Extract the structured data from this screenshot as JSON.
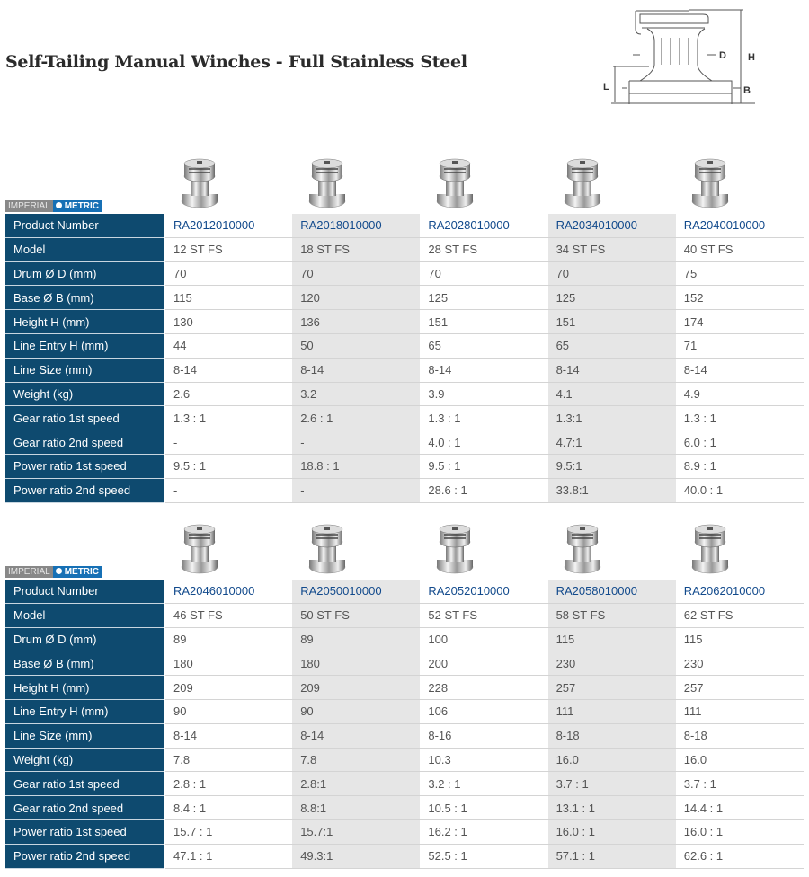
{
  "title": "Self-Tailing Manual Winches - Full Stainless Steel",
  "diagram_labels": {
    "d": "D",
    "h": "H",
    "l": "L",
    "b": "B"
  },
  "unit_toggle": {
    "imperial": "IMPERIAL",
    "metric": "METRIC",
    "selected": "METRIC"
  },
  "row_labels": [
    "Product Number",
    "Model",
    "Drum Ø D  (mm)",
    "Base Ø B  (mm)",
    "Height H  (mm)",
    "Line Entry H  (mm)",
    "Line Size  (mm)",
    "Weight  (kg)",
    "Gear ratio 1st speed",
    "Gear ratio 2nd speed",
    "Power ratio 1st speed",
    "Power ratio 2nd speed"
  ],
  "tables": [
    {
      "products": [
        [
          "RA2012010000",
          "12 ST FS",
          "70",
          "115",
          "130",
          "44",
          "8-14",
          "2.6",
          "1.3 : 1",
          "-",
          "9.5 : 1",
          "-"
        ],
        [
          "RA2018010000",
          "18 ST FS",
          "70",
          "120",
          "136",
          "50",
          "8-14",
          "3.2",
          "2.6 : 1",
          "-",
          "18.8 : 1",
          "-"
        ],
        [
          "RA2028010000",
          "28 ST FS",
          "70",
          "125",
          "151",
          "65",
          "8-14",
          "3.9",
          "1.3 : 1",
          "4.0 : 1",
          "9.5 : 1",
          "28.6 : 1"
        ],
        [
          "RA2034010000",
          "34 ST FS",
          "70",
          "125",
          "151",
          "65",
          "8-14",
          "4.1",
          "1.3:1",
          "4.7:1",
          "9.5:1",
          "33.8:1"
        ],
        [
          "RA2040010000",
          "40 ST FS",
          "75",
          "152",
          "174",
          "71",
          "8-14",
          "4.9",
          "1.3 : 1",
          "6.0 : 1",
          "8.9 : 1",
          "40.0 : 1"
        ]
      ]
    },
    {
      "products": [
        [
          "RA2046010000",
          "46 ST FS",
          "89",
          "180",
          "209",
          "90",
          "8-14",
          "7.8",
          "2.8 : 1",
          "8.4 : 1",
          "15.7 : 1",
          "47.1 : 1"
        ],
        [
          "RA2050010000",
          "50 ST FS",
          "89",
          "180",
          "209",
          "90",
          "8-14",
          "7.8",
          "2.8:1",
          "8.8:1",
          "15.7:1",
          "49.3:1"
        ],
        [
          "RA2052010000",
          "52 ST FS",
          "100",
          "200",
          "228",
          "106",
          "8-16",
          "10.3",
          "3.2 : 1",
          "10.5 : 1",
          "16.2 : 1",
          "52.5 : 1"
        ],
        [
          "RA2058010000",
          "58 ST FS",
          "115",
          "230",
          "257",
          "111",
          "8-18",
          "16.0",
          "3.7 : 1",
          "13.1 : 1",
          "16.0 : 1",
          "57.1 : 1"
        ],
        [
          "RA2062010000",
          "62 ST FS",
          "115",
          "230",
          "257",
          "111",
          "8-18",
          "16.0",
          "3.7 : 1",
          "14.4 : 1",
          "16.0 : 1",
          "62.6 : 1"
        ]
      ]
    }
  ],
  "colors": {
    "label_bg": "#0e4a6f",
    "metric_bg": "#1670b5",
    "product_link": "#124a8c",
    "alt_col": "#e6e6e6"
  }
}
